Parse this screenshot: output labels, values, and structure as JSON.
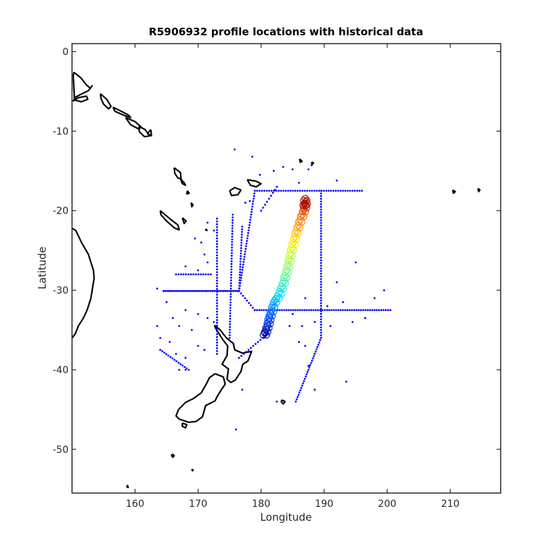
{
  "chart_data": {
    "type": "scatter",
    "title": "R5906932 profile locations with historical data",
    "xlabel": "Longitude",
    "ylabel": "Latitude",
    "xlim": [
      150,
      218
    ],
    "ylim": [
      -55.5,
      1
    ],
    "xticks": [
      160,
      170,
      180,
      190,
      200,
      210
    ],
    "yticks": [
      0,
      -10,
      -20,
      -30,
      -40,
      -50
    ],
    "grid": false,
    "colors": {
      "historical": "#0000ff",
      "coastline": "#000000",
      "frame": "#262626",
      "track_colormap": [
        "#00008f",
        "#0050ff",
        "#00dfff",
        "#7fff7f",
        "#ffef00",
        "#ff6000",
        "#8f0000"
      ]
    },
    "series": [
      {
        "role": "historical",
        "marker": "dot",
        "segments": [
          {
            "from": [
              164.5,
              -30.1
            ],
            "to": [
              176.5,
              -30.1
            ],
            "n": 40
          },
          {
            "from": [
              176.5,
              -30.1
            ],
            "to": [
              179.0,
              -32.5
            ],
            "n": 8
          },
          {
            "from": [
              179.0,
              -32.5
            ],
            "to": [
              200.5,
              -32.5
            ],
            "n": 60
          },
          {
            "from": [
              179.0,
              -17.5
            ],
            "to": [
              196.0,
              -17.5
            ],
            "n": 45
          },
          {
            "from": [
              179.0,
              -17.5
            ],
            "to": [
              176.5,
              -30.1
            ],
            "n": 38
          },
          {
            "from": [
              189.5,
              -17.5
            ],
            "to": [
              189.5,
              -36.0
            ],
            "n": 55
          },
          {
            "from": [
              189.5,
              -36.0
            ],
            "to": [
              185.5,
              -44.0
            ],
            "n": 28
          },
          {
            "from": [
              175.5,
              -20.5
            ],
            "to": [
              175.0,
              -36.0
            ],
            "n": 45
          },
          {
            "from": [
              173.0,
              -21.0
            ],
            "to": [
              173.0,
              -38.0
            ],
            "n": 48
          },
          {
            "from": [
              176.5,
              -30.1
            ],
            "to": [
              177.0,
              -22.0
            ],
            "n": 24
          },
          {
            "from": [
              164.0,
              -37.5
            ],
            "to": [
              168.5,
              -40.0
            ],
            "n": 14
          },
          {
            "from": [
              166.5,
              -28.0
            ],
            "to": [
              172.0,
              -28.0
            ],
            "n": 14
          },
          {
            "from": [
              180.0,
              -20.0
            ],
            "to": [
              182.5,
              -17.0
            ],
            "n": 8
          },
          {
            "from": [
              181.0,
              -35.5
            ],
            "to": [
              176.5,
              -38.5
            ],
            "n": 12
          }
        ],
        "points": [
          [
            175.8,
            -12.3
          ],
          [
            178.6,
            -13.2
          ],
          [
            179.8,
            -15.5
          ],
          [
            182.0,
            -15.0
          ],
          [
            183.5,
            -14.5
          ],
          [
            185.0,
            -14.8
          ],
          [
            187.5,
            -14.8
          ],
          [
            188.0,
            -14.3
          ],
          [
            186.0,
            -16.5
          ],
          [
            192.0,
            -16.2
          ],
          [
            177.5,
            -19.0
          ],
          [
            178.2,
            -18.8
          ],
          [
            195.0,
            -26.5
          ],
          [
            198.0,
            -31.0
          ],
          [
            199.5,
            -30.0
          ],
          [
            196.5,
            -33.5
          ],
          [
            193.5,
            -41.5
          ],
          [
            194.5,
            -34.0
          ],
          [
            187.5,
            -39.5
          ],
          [
            188.5,
            -42.5
          ],
          [
            163.5,
            -29.8
          ],
          [
            165.0,
            -31.5
          ],
          [
            166.0,
            -33.5
          ],
          [
            168.0,
            -32.5
          ],
          [
            170.0,
            -33.0
          ],
          [
            171.5,
            -33.5
          ],
          [
            163.5,
            -34.5
          ],
          [
            164.0,
            -36.0
          ],
          [
            165.5,
            -36.5
          ],
          [
            166.5,
            -38.0
          ],
          [
            168.0,
            -38.5
          ],
          [
            170.0,
            -37.0
          ],
          [
            171.0,
            -37.5
          ],
          [
            172.5,
            -34.0
          ],
          [
            167.0,
            -34.5
          ],
          [
            169.0,
            -35.0
          ],
          [
            167.0,
            -40.0
          ],
          [
            168.0,
            -40.0
          ],
          [
            171.5,
            -21.5
          ],
          [
            172.5,
            -22.5
          ],
          [
            169.5,
            -23.5
          ],
          [
            170.5,
            -24.0
          ],
          [
            171.0,
            -25.5
          ],
          [
            171.5,
            -26.5
          ],
          [
            168.0,
            -27.0
          ],
          [
            170.0,
            -27.5
          ],
          [
            184.5,
            -34.5
          ],
          [
            186.5,
            -34.5
          ],
          [
            188.5,
            -34.0
          ],
          [
            191.0,
            -34.5
          ],
          [
            185.0,
            -33.0
          ],
          [
            187.0,
            -31.0
          ],
          [
            190.5,
            -32.0
          ],
          [
            186.0,
            -36.5
          ],
          [
            187.0,
            -37.0
          ],
          [
            176.0,
            -47.5
          ],
          [
            182.5,
            -44.0
          ],
          [
            177.0,
            -42.5
          ],
          [
            192.0,
            -29.0
          ],
          [
            193.0,
            -31.5
          ]
        ]
      },
      {
        "role": "profile_track",
        "marker": "circle",
        "colormap": "jet",
        "points": [
          [
            180.6,
            -35.5
          ],
          [
            180.8,
            -35.1
          ],
          [
            181.0,
            -34.6
          ],
          [
            181.2,
            -34.1
          ],
          [
            181.3,
            -33.6
          ],
          [
            181.5,
            -33.1
          ],
          [
            181.7,
            -32.6
          ],
          [
            181.9,
            -32.0
          ],
          [
            182.2,
            -31.4
          ],
          [
            182.6,
            -30.9
          ],
          [
            183.0,
            -30.3
          ],
          [
            183.3,
            -29.7
          ],
          [
            183.6,
            -29.0
          ],
          [
            183.8,
            -28.3
          ],
          [
            184.1,
            -27.6
          ],
          [
            184.3,
            -26.9
          ],
          [
            184.5,
            -26.2
          ],
          [
            184.7,
            -25.5
          ],
          [
            184.9,
            -24.8
          ],
          [
            185.1,
            -24.1
          ],
          [
            185.4,
            -23.4
          ],
          [
            185.6,
            -22.7
          ],
          [
            185.9,
            -22.0
          ],
          [
            186.2,
            -21.3
          ],
          [
            186.5,
            -20.6
          ],
          [
            186.8,
            -20.0
          ],
          [
            187.0,
            -19.5
          ],
          [
            187.1,
            -19.0
          ],
          [
            187.0,
            -18.6
          ],
          [
            186.9,
            -19.2
          ]
        ]
      }
    ],
    "coastlines": [
      [
        [
          150.3,
          -2.6
        ],
        [
          151.4,
          -3.3
        ],
        [
          152.3,
          -4.2
        ],
        [
          152.9,
          -4.6
        ],
        [
          153.2,
          -4.3
        ],
        [
          152.6,
          -4.9
        ],
        [
          151.6,
          -5.3
        ],
        [
          150.6,
          -5.7
        ],
        [
          150.2,
          -6.2
        ],
        [
          151.0,
          -5.8
        ],
        [
          152.3,
          -5.6
        ],
        [
          152.5,
          -6.0
        ],
        [
          151.5,
          -6.3
        ],
        [
          150.4,
          -6.1
        ],
        [
          150.2,
          -3.0
        ],
        [
          150.3,
          -2.6
        ]
      ],
      [
        [
          154.5,
          -5.3
        ],
        [
          155.5,
          -6.0
        ],
        [
          156.2,
          -6.9
        ],
        [
          155.8,
          -7.2
        ],
        [
          155.0,
          -6.6
        ],
        [
          154.6,
          -5.9
        ],
        [
          154.5,
          -5.3
        ]
      ],
      [
        [
          156.5,
          -7.0
        ],
        [
          157.8,
          -7.5
        ],
        [
          159.0,
          -8.0
        ],
        [
          159.3,
          -8.3
        ],
        [
          158.2,
          -8.0
        ],
        [
          156.8,
          -7.5
        ],
        [
          156.5,
          -7.0
        ]
      ],
      [
        [
          158.5,
          -8.3
        ],
        [
          160.0,
          -8.8
        ],
        [
          161.0,
          -9.5
        ],
        [
          160.5,
          -9.7
        ],
        [
          159.3,
          -9.2
        ],
        [
          158.5,
          -8.3
        ]
      ],
      [
        [
          160.6,
          -9.4
        ],
        [
          161.6,
          -9.8
        ],
        [
          162.3,
          -10.6
        ],
        [
          161.5,
          -10.7
        ],
        [
          160.7,
          -10.1
        ],
        [
          160.6,
          -9.4
        ]
      ],
      [
        [
          162.5,
          -9.8
        ],
        [
          162.6,
          -10.6
        ],
        [
          162.0,
          -10.3
        ],
        [
          162.5,
          -9.8
        ]
      ],
      [
        [
          166.2,
          -14.6
        ],
        [
          167.2,
          -15.2
        ],
        [
          167.3,
          -16.0
        ],
        [
          166.8,
          -15.9
        ],
        [
          166.3,
          -15.3
        ],
        [
          166.2,
          -14.6
        ]
      ],
      [
        [
          167.2,
          -16.0
        ],
        [
          167.8,
          -16.5
        ],
        [
          168.0,
          -16.8
        ],
        [
          167.5,
          -16.6
        ],
        [
          167.2,
          -16.0
        ]
      ],
      [
        [
          168.3,
          -17.5
        ],
        [
          168.6,
          -17.8
        ],
        [
          168.2,
          -17.9
        ],
        [
          168.3,
          -17.5
        ]
      ],
      [
        [
          164.0,
          -20.0
        ],
        [
          165.5,
          -21.0
        ],
        [
          166.8,
          -21.8
        ],
        [
          167.0,
          -22.4
        ],
        [
          166.3,
          -22.2
        ],
        [
          165.0,
          -21.3
        ],
        [
          164.1,
          -20.5
        ],
        [
          164.0,
          -20.0
        ]
      ],
      [
        [
          167.5,
          -20.9
        ],
        [
          168.1,
          -21.3
        ],
        [
          167.8,
          -21.6
        ],
        [
          167.5,
          -20.9
        ]
      ],
      [
        [
          175.0,
          -17.5
        ],
        [
          175.8,
          -17.1
        ],
        [
          176.8,
          -17.4
        ],
        [
          176.3,
          -18.0
        ],
        [
          175.3,
          -18.1
        ],
        [
          175.0,
          -17.5
        ]
      ],
      [
        [
          177.8,
          -16.1
        ],
        [
          179.2,
          -16.3
        ],
        [
          180.0,
          -16.6
        ],
        [
          179.2,
          -17.0
        ],
        [
          178.3,
          -16.8
        ],
        [
          177.8,
          -16.1
        ]
      ],
      [
        [
          150.0,
          -22.2
        ],
        [
          150.6,
          -22.5
        ],
        [
          151.5,
          -24.0
        ],
        [
          152.6,
          -25.5
        ],
        [
          153.0,
          -26.5
        ],
        [
          153.4,
          -27.5
        ],
        [
          153.5,
          -28.5
        ],
        [
          153.2,
          -30.0
        ],
        [
          153.0,
          -31.0
        ],
        [
          152.4,
          -32.5
        ],
        [
          151.8,
          -33.5
        ],
        [
          151.0,
          -34.5
        ],
        [
          150.5,
          -35.5
        ],
        [
          150.0,
          -36.0
        ]
      ],
      [
        [
          172.6,
          -34.4
        ],
        [
          173.5,
          -35.0
        ],
        [
          174.5,
          -36.0
        ],
        [
          175.6,
          -36.7
        ],
        [
          175.8,
          -37.5
        ],
        [
          177.0,
          -37.9
        ],
        [
          178.5,
          -37.7
        ],
        [
          177.9,
          -38.9
        ],
        [
          177.1,
          -39.3
        ],
        [
          176.8,
          -40.2
        ],
        [
          175.9,
          -41.3
        ],
        [
          175.2,
          -41.6
        ],
        [
          174.6,
          -41.2
        ],
        [
          174.8,
          -39.9
        ],
        [
          173.8,
          -39.3
        ],
        [
          174.6,
          -38.2
        ],
        [
          174.7,
          -37.0
        ],
        [
          173.9,
          -36.2
        ],
        [
          172.8,
          -34.8
        ],
        [
          172.6,
          -34.4
        ]
      ],
      [
        [
          172.7,
          -40.5
        ],
        [
          174.0,
          -40.9
        ],
        [
          174.3,
          -41.8
        ],
        [
          173.7,
          -42.5
        ],
        [
          173.0,
          -43.4
        ],
        [
          172.7,
          -43.9
        ],
        [
          171.2,
          -44.5
        ],
        [
          170.7,
          -45.9
        ],
        [
          169.7,
          -46.5
        ],
        [
          168.5,
          -46.6
        ],
        [
          167.0,
          -46.2
        ],
        [
          166.5,
          -45.8
        ],
        [
          166.9,
          -45.0
        ],
        [
          168.0,
          -44.1
        ],
        [
          169.3,
          -43.6
        ],
        [
          170.5,
          -42.9
        ],
        [
          171.3,
          -41.8
        ],
        [
          171.8,
          -41.0
        ],
        [
          172.7,
          -40.5
        ]
      ],
      [
        [
          167.5,
          -46.7
        ],
        [
          168.2,
          -46.9
        ],
        [
          168.0,
          -47.3
        ],
        [
          167.5,
          -47.1
        ],
        [
          167.5,
          -46.7
        ]
      ],
      [
        [
          183.3,
          -43.8
        ],
        [
          183.8,
          -44.0
        ],
        [
          183.5,
          -44.3
        ],
        [
          183.2,
          -44.0
        ],
        [
          183.3,
          -43.8
        ]
      ],
      [
        [
          165.9,
          -50.6
        ],
        [
          166.2,
          -50.8
        ],
        [
          166.0,
          -51.0
        ],
        [
          165.8,
          -50.8
        ],
        [
          165.9,
          -50.6
        ]
      ],
      [
        [
          158.8,
          -54.5
        ],
        [
          158.9,
          -54.8
        ],
        [
          158.7,
          -54.7
        ],
        [
          158.8,
          -54.5
        ]
      ],
      [
        [
          210.4,
          -17.4
        ],
        [
          210.8,
          -17.6
        ],
        [
          210.5,
          -17.8
        ],
        [
          210.4,
          -17.4
        ]
      ],
      [
        [
          214.4,
          -17.2
        ],
        [
          214.7,
          -17.4
        ],
        [
          214.5,
          -17.6
        ],
        [
          214.4,
          -17.2
        ]
      ],
      [
        [
          169.0,
          -52.5
        ],
        [
          169.2,
          -52.6
        ],
        [
          169.1,
          -52.7
        ],
        [
          169.0,
          -52.5
        ]
      ],
      [
        [
          168.9,
          -19.0
        ],
        [
          169.2,
          -19.3
        ],
        [
          169.0,
          -19.5
        ],
        [
          168.9,
          -19.0
        ]
      ],
      [
        [
          186.1,
          -13.5
        ],
        [
          186.5,
          -13.8
        ],
        [
          186.2,
          -13.9
        ],
        [
          186.1,
          -13.5
        ]
      ],
      [
        [
          188.0,
          -13.9
        ],
        [
          188.3,
          -14.0
        ],
        [
          188.1,
          -14.2
        ],
        [
          188.0,
          -13.9
        ]
      ],
      [
        [
          171.3,
          -22.3
        ],
        [
          171.4,
          -22.5
        ],
        [
          171.2,
          -22.4
        ],
        [
          171.3,
          -22.3
        ]
      ]
    ]
  }
}
